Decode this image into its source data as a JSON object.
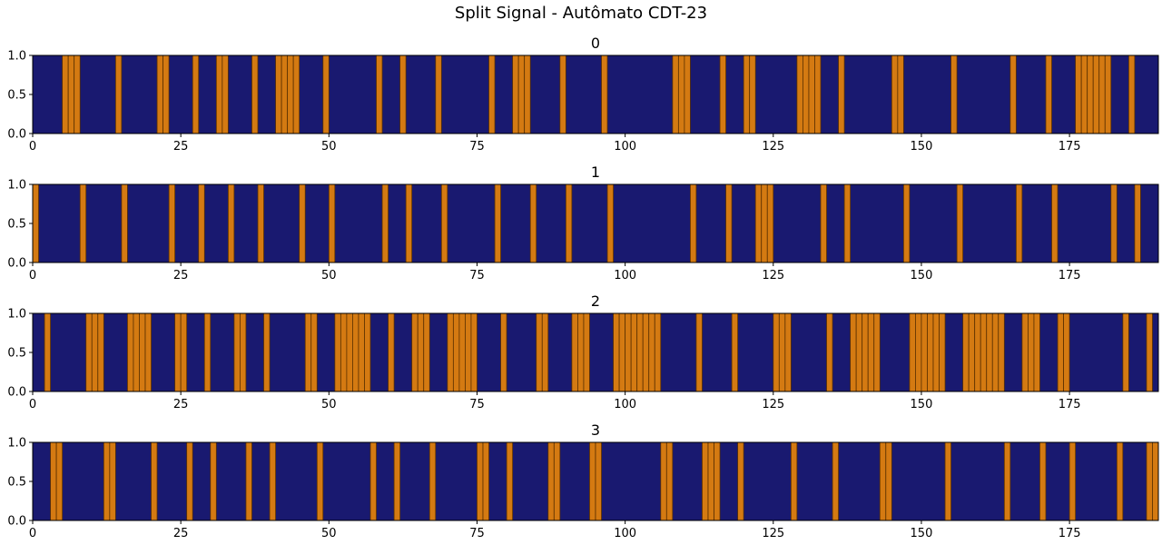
{
  "chart_data": {
    "type": "bar",
    "title": "Split Signal - Autômato CDT-23",
    "layout": "4 stacked panels",
    "panels": [
      {
        "title": "0",
        "xlim": [
          0,
          190
        ],
        "ylim": [
          0,
          1
        ],
        "x_ticks": [
          0,
          25,
          50,
          75,
          100,
          125,
          150,
          175
        ],
        "y_ticks": [
          0.0,
          0.5,
          1.0
        ],
        "active_indices": [
          5,
          6,
          7,
          14,
          21,
          22,
          27,
          31,
          32,
          37,
          41,
          42,
          43,
          44,
          49,
          58,
          62,
          68,
          77,
          81,
          82,
          83,
          89,
          96,
          108,
          109,
          110,
          116,
          120,
          121,
          129,
          130,
          131,
          132,
          136,
          145,
          146,
          155,
          165,
          171,
          176,
          177,
          178,
          179,
          180,
          181,
          185
        ]
      },
      {
        "title": "1",
        "xlim": [
          0,
          190
        ],
        "ylim": [
          0,
          1
        ],
        "x_ticks": [
          0,
          25,
          50,
          75,
          100,
          125,
          150,
          175
        ],
        "y_ticks": [
          0.0,
          0.5,
          1.0
        ],
        "active_indices": [
          0,
          8,
          15,
          23,
          28,
          33,
          38,
          45,
          50,
          59,
          63,
          69,
          78,
          84,
          90,
          97,
          111,
          117,
          122,
          123,
          124,
          133,
          137,
          147,
          156,
          166,
          172,
          182,
          186
        ]
      },
      {
        "title": "2",
        "xlim": [
          0,
          190
        ],
        "ylim": [
          0,
          1
        ],
        "x_ticks": [
          0,
          25,
          50,
          75,
          100,
          125,
          150,
          175
        ],
        "y_ticks": [
          0.0,
          0.5,
          1.0
        ],
        "active_indices": [
          2,
          9,
          10,
          11,
          16,
          17,
          18,
          19,
          24,
          25,
          29,
          34,
          35,
          39,
          46,
          47,
          51,
          52,
          53,
          54,
          55,
          56,
          60,
          64,
          65,
          66,
          70,
          71,
          72,
          73,
          74,
          79,
          85,
          86,
          91,
          92,
          93,
          98,
          99,
          100,
          101,
          102,
          103,
          104,
          105,
          112,
          118,
          125,
          126,
          127,
          134,
          138,
          139,
          140,
          141,
          142,
          148,
          149,
          150,
          151,
          152,
          153,
          157,
          158,
          159,
          160,
          161,
          162,
          163,
          167,
          168,
          169,
          173,
          174,
          184,
          188
        ]
      },
      {
        "title": "3",
        "xlim": [
          0,
          190
        ],
        "ylim": [
          0,
          1
        ],
        "x_ticks": [
          0,
          25,
          50,
          75,
          100,
          125,
          150,
          175
        ],
        "y_ticks": [
          0.0,
          0.5,
          1.0
        ],
        "active_indices": [
          3,
          4,
          12,
          13,
          20,
          26,
          30,
          36,
          40,
          48,
          57,
          61,
          67,
          75,
          76,
          80,
          87,
          88,
          94,
          95,
          106,
          107,
          113,
          114,
          115,
          119,
          128,
          135,
          143,
          144,
          154,
          164,
          170,
          175,
          183,
          188,
          189
        ]
      }
    ],
    "background_color": "#191970",
    "active_color": "#d47a12",
    "active_edge_color": "#5a3000",
    "grid": false,
    "legend": "none"
  }
}
